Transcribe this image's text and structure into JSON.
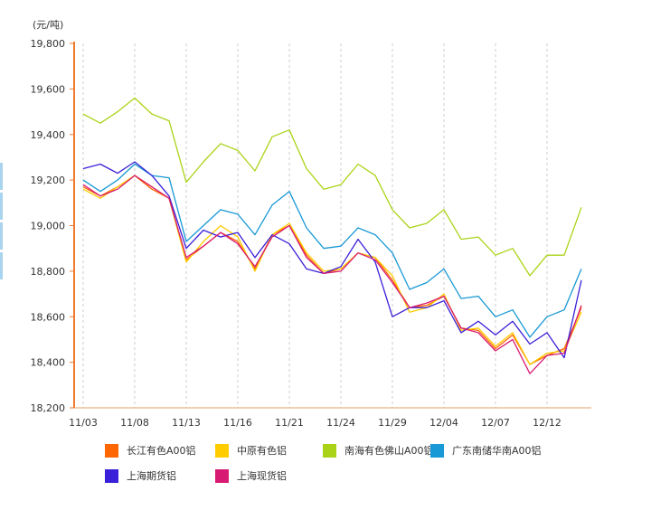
{
  "chart_data": {
    "type": "line",
    "unit_label": "(元/吨)",
    "xlabel": "",
    "ylabel": "",
    "ylim": [
      18200,
      19800
    ],
    "yticks": [
      18200,
      18400,
      18600,
      18800,
      19000,
      19200,
      19400,
      19600,
      19800
    ],
    "ytick_labels": [
      "18,200",
      "18,400",
      "18,600",
      "18,800",
      "19,000",
      "19,200",
      "19,400",
      "19,600",
      "19,800"
    ],
    "x_tick_labels": [
      "11/03",
      "11/08",
      "11/13",
      "11/16",
      "11/21",
      "11/24",
      "11/29",
      "12/04",
      "12/07",
      "12/12"
    ],
    "x_tick_indices": [
      0,
      3,
      6,
      9,
      12,
      15,
      18,
      21,
      24,
      27
    ],
    "grid": "vertical-dashed",
    "legend_position": "bottom",
    "series": [
      {
        "name": "长江有色A00铝",
        "color": "#ff6600",
        "values": [
          19170,
          19130,
          19170,
          19220,
          19160,
          19120,
          18850,
          18910,
          18970,
          18930,
          18810,
          18960,
          19000,
          18870,
          18790,
          18810,
          18880,
          18860,
          18760,
          18640,
          18650,
          18690,
          18550,
          18540,
          18460,
          18520,
          18390,
          18430,
          18460,
          18640
        ]
      },
      {
        "name": "中原有色铝",
        "color": "#ffcc00",
        "values": [
          19160,
          19120,
          19170,
          19220,
          19170,
          19120,
          18840,
          18930,
          19000,
          18950,
          18800,
          18960,
          19010,
          18880,
          18800,
          18810,
          18880,
          18860,
          18780,
          18620,
          18640,
          18700,
          18540,
          18550,
          18470,
          18530,
          18390,
          18440,
          18450,
          18620
        ]
      },
      {
        "name": "南海有色佛山A00铝",
        "color": "#aad317",
        "values": [
          19490,
          19450,
          19500,
          19560,
          19490,
          19460,
          19190,
          19280,
          19360,
          19330,
          19240,
          19390,
          19420,
          19250,
          19160,
          19180,
          19270,
          19220,
          19070,
          18990,
          19010,
          19070,
          18940,
          18950,
          18870,
          18900,
          18780,
          18870,
          18870,
          19080
        ]
      },
      {
        "name": "广东南储华南A00铝",
        "color": "#1999d5",
        "values": [
          19200,
          19150,
          19200,
          19270,
          19220,
          19210,
          18930,
          19000,
          19070,
          19050,
          18960,
          19090,
          19150,
          18990,
          18900,
          18910,
          18990,
          18960,
          18880,
          18720,
          18750,
          18810,
          18680,
          18690,
          18600,
          18630,
          18510,
          18600,
          18630,
          18810
        ]
      },
      {
        "name": "上海期货铝",
        "color": "#3a20d8",
        "values": [
          19250,
          19270,
          19230,
          19280,
          19220,
          19130,
          18900,
          18980,
          18950,
          18970,
          18860,
          18960,
          18920,
          18810,
          18790,
          18820,
          18940,
          18840,
          18600,
          18640,
          18640,
          18670,
          18530,
          18580,
          18520,
          18580,
          18480,
          18530,
          18420,
          18760
        ]
      },
      {
        "name": "上海现货铝",
        "color": "#d81b72",
        "values": [
          19180,
          19130,
          19160,
          19220,
          19170,
          19120,
          18860,
          18910,
          18970,
          18920,
          18820,
          18950,
          19000,
          18860,
          18790,
          18800,
          18880,
          18850,
          18750,
          18640,
          18660,
          18690,
          18550,
          18530,
          18450,
          18500,
          18350,
          18430,
          18440,
          18650
        ]
      }
    ]
  }
}
